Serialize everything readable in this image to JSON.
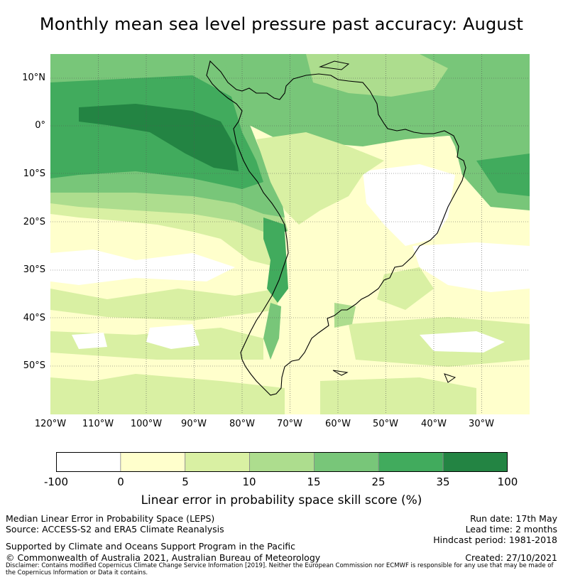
{
  "title": "Monthly mean sea level pressure past accuracy: August",
  "map": {
    "lat_labels": [
      "10°N",
      "0°",
      "10°S",
      "20°S",
      "30°S",
      "40°S",
      "50°S"
    ],
    "lon_labels": [
      "120°W",
      "110°W",
      "100°W",
      "90°W",
      "80°W",
      "70°W",
      "60°W",
      "50°W",
      "40°W",
      "30°W"
    ]
  },
  "colorbar": {
    "ticks": [
      "-100",
      "0",
      "5",
      "10",
      "15",
      "25",
      "35",
      "100"
    ],
    "colors": [
      "#ffffff",
      "#ffffcc",
      "#d9f0a3",
      "#addd8e",
      "#78c679",
      "#41ab5d",
      "#238443"
    ],
    "label": "Linear error in probability space skill score (%)"
  },
  "footer": {
    "leps": "Median Linear Error in Probability Space (LEPS)",
    "source": "Source: ACCESS-S2 and ERA5 Climate Reanalysis",
    "support": "Supported by Climate and Oceans Support Program in the Pacific",
    "copyright": "© Commonwealth of Australia 2021, Australian Bureau of Meteorology",
    "run_date": "Run date: 17th May",
    "lead_time": "Lead time: 2 months",
    "hindcast": "Hindcast period: 1981-2018",
    "created": "Created: 27/10/2021",
    "disclaimer": "Disclaimer: Contains modified Copernicus Climate Change Service Information [2019]. Neither the European Commission nor ECMWF is responsible for any use that may be made of the Copernicus Information or Data it contains."
  }
}
